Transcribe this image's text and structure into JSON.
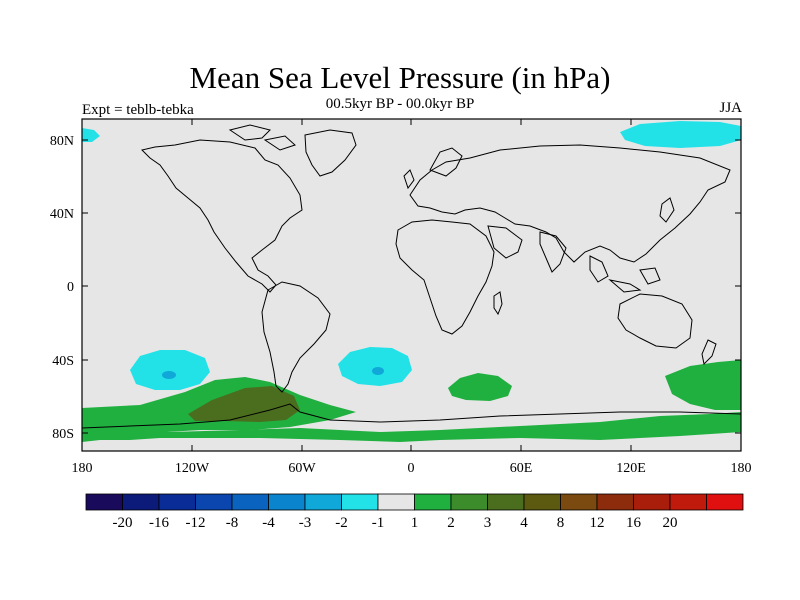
{
  "title": "Mean Sea Level Pressure (in hPa)",
  "experiment_label": "Expt = teblb-tebka",
  "period_label": "00.5kyr BP - 00.0kyr BP",
  "season_label": "JJA",
  "y_ticks": [
    "80N",
    "40N",
    "0",
    "40S",
    "80S"
  ],
  "x_ticks": [
    "180",
    "120W",
    "60W",
    "0",
    "60E",
    "120E",
    "180"
  ],
  "colorbar": {
    "colors": [
      "#1a0a5c",
      "#0c1a7a",
      "#0a2c96",
      "#0a46ad",
      "#0a64bf",
      "#0a84cc",
      "#10a8d8",
      "#22e2e8",
      "#e6e6e6",
      "#20b040",
      "#3c8c2c",
      "#4a6e1e",
      "#5c5a10",
      "#7a4a10",
      "#8c2c0c",
      "#a81e0a",
      "#c01a0c",
      "#e01010"
    ],
    "labels": [
      "-20",
      "-16",
      "-12",
      "-8",
      "-4",
      "-3",
      "-2",
      "-1",
      "1",
      "2",
      "3",
      "4",
      "8",
      "12",
      "16",
      "20"
    ]
  },
  "colors": {
    "land_ocean_neutral": "#e6e6e6",
    "negative_light": "#22e2e8",
    "negative_mid": "#10a8d8",
    "positive_2": "#20b040",
    "positive_3": "#4a6e1e"
  }
}
